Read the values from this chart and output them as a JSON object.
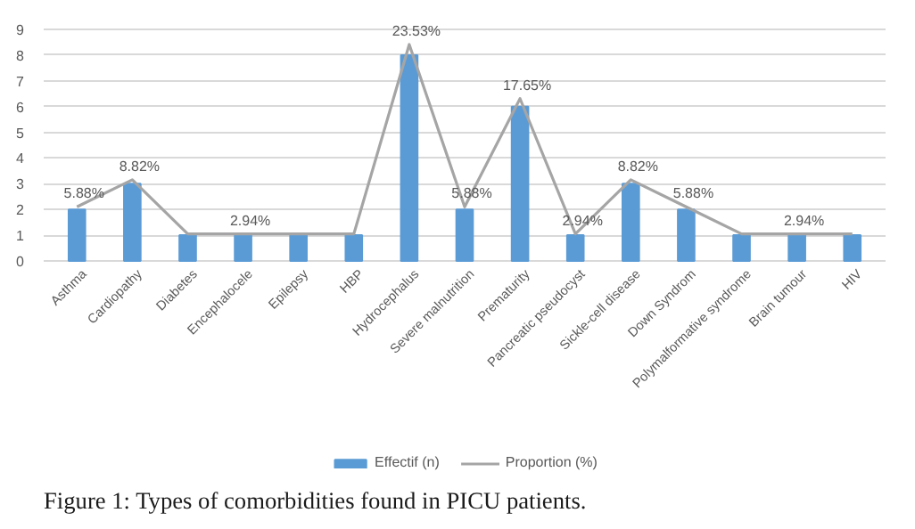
{
  "chart_data": {
    "type": "bar",
    "title": "Figure 1: Types of comorbidities found in PICU patients.",
    "categories": [
      "Asthma",
      "Cardiopathy",
      "Diabetes",
      "Encephalocele",
      "Epilepsy",
      "HBP",
      "Hydrocephalus",
      "Severe malnutrition",
      "Prematurity",
      "Pancreatic pseudocyst",
      "Sickle-cell disease",
      "Down Syndrom",
      "Polymalformative syndrome",
      "Brain tumour",
      "HIV"
    ],
    "series": [
      {
        "name": "Effectif (n)",
        "color": "#5b9bd5",
        "values": [
          2,
          3,
          1,
          1,
          1,
          1,
          8,
          2,
          6,
          1,
          3,
          2,
          1,
          1,
          1
        ]
      },
      {
        "name": "Proportion (%)",
        "type": "line",
        "axis": "y2",
        "color": "#a5a5a5",
        "values": [
          5.88,
          8.82,
          2.94,
          2.94,
          2.94,
          2.94,
          23.53,
          5.88,
          17.65,
          2.94,
          8.82,
          5.88,
          2.94,
          2.94,
          2.94
        ],
        "value_labels": [
          "5.88%",
          "8.82%",
          null,
          "2.94%",
          null,
          null,
          "23.53%",
          "5.88%",
          "17.65%",
          "2.94%",
          "8.82%",
          "5.88%",
          null,
          "2.94%",
          null
        ]
      }
    ],
    "ylim": [
      0,
      9
    ],
    "yticks": [
      0,
      1,
      2,
      3,
      4,
      5,
      6,
      7,
      8,
      9
    ],
    "tick_labels": "xy",
    "grid": "y",
    "legend": "bottom",
    "marker": "none",
    "line_style": "solid"
  }
}
